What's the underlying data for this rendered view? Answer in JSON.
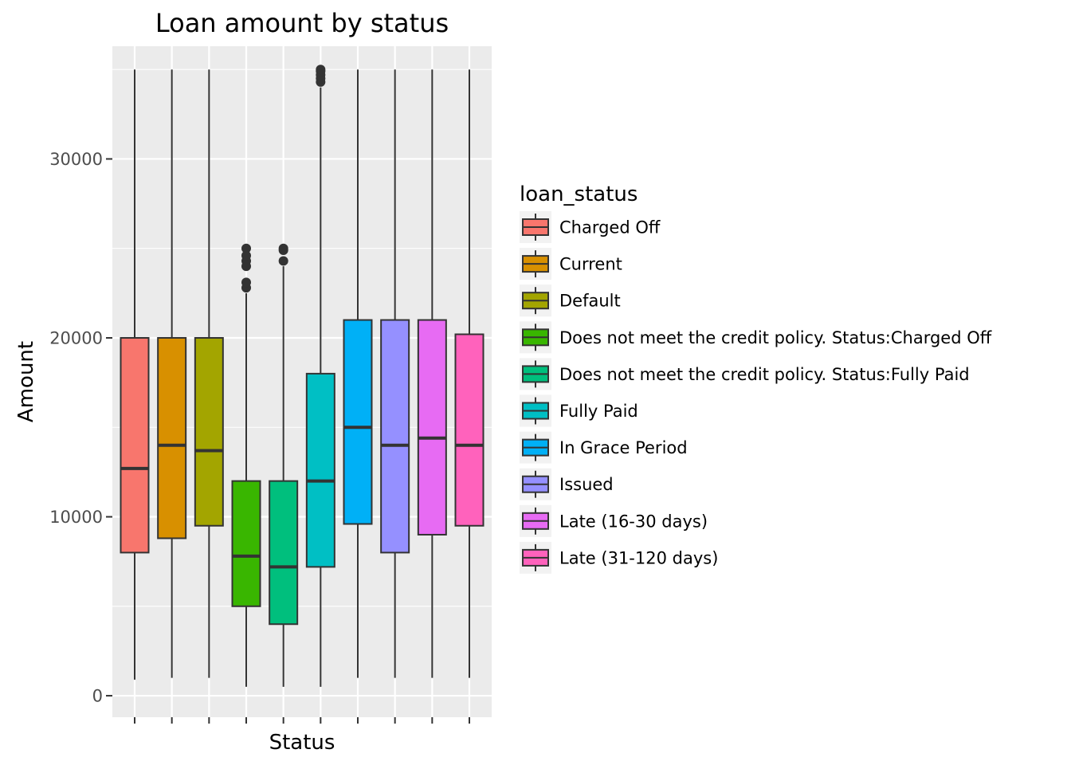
{
  "chart_data": {
    "type": "boxplot",
    "title": "Loan amount by status",
    "xlabel": "Status",
    "ylabel": "Amount",
    "ylim": [
      -1200,
      36300
    ],
    "yticks": [
      0,
      10000,
      20000,
      30000
    ],
    "ytick_labels": [
      "0",
      "10000",
      "20000",
      "30000"
    ],
    "grid": true,
    "legend": {
      "title": "loan_status",
      "placement": "right"
    },
    "categories": [
      "Charged Off",
      "Current",
      "Default",
      "Does not meet the credit policy. Status:Charged Off",
      "Does not meet the credit policy. Status:Fully Paid",
      "Fully Paid",
      "In Grace Period",
      "Issued",
      "Late (16-30 days)",
      "Late (31-120 days)"
    ],
    "colors": [
      "#F8766D",
      "#D89000",
      "#A3A500",
      "#39B600",
      "#00BF7D",
      "#00BFC4",
      "#00B0F6",
      "#9590FF",
      "#E76BF3",
      "#FF62BC"
    ],
    "boxes": [
      {
        "min": 900,
        "q1": 8000,
        "median": 12700,
        "q3": 20000,
        "max": 35000,
        "outliers": []
      },
      {
        "min": 1000,
        "q1": 8800,
        "median": 14000,
        "q3": 20000,
        "max": 35000,
        "outliers": []
      },
      {
        "min": 1000,
        "q1": 9500,
        "median": 13700,
        "q3": 20000,
        "max": 35000,
        "outliers": []
      },
      {
        "min": 500,
        "q1": 5000,
        "median": 7800,
        "q3": 12000,
        "max": 22500,
        "outliers": [
          22800,
          23100,
          24000,
          24300,
          24600,
          25000
        ]
      },
      {
        "min": 500,
        "q1": 4000,
        "median": 7200,
        "q3": 12000,
        "max": 24000,
        "outliers": [
          24300,
          24900,
          25000
        ]
      },
      {
        "min": 500,
        "q1": 7200,
        "median": 12000,
        "q3": 18000,
        "max": 34000,
        "outliers": [
          34300,
          34500,
          34700,
          34900,
          35000
        ]
      },
      {
        "min": 1000,
        "q1": 9600,
        "median": 15000,
        "q3": 21000,
        "max": 35000,
        "outliers": []
      },
      {
        "min": 1000,
        "q1": 8000,
        "median": 14000,
        "q3": 21000,
        "max": 35000,
        "outliers": []
      },
      {
        "min": 1000,
        "q1": 9000,
        "median": 14400,
        "q3": 21000,
        "max": 35000,
        "outliers": []
      },
      {
        "min": 1000,
        "q1": 9500,
        "median": 14000,
        "q3": 20200,
        "max": 35000,
        "outliers": []
      }
    ]
  }
}
